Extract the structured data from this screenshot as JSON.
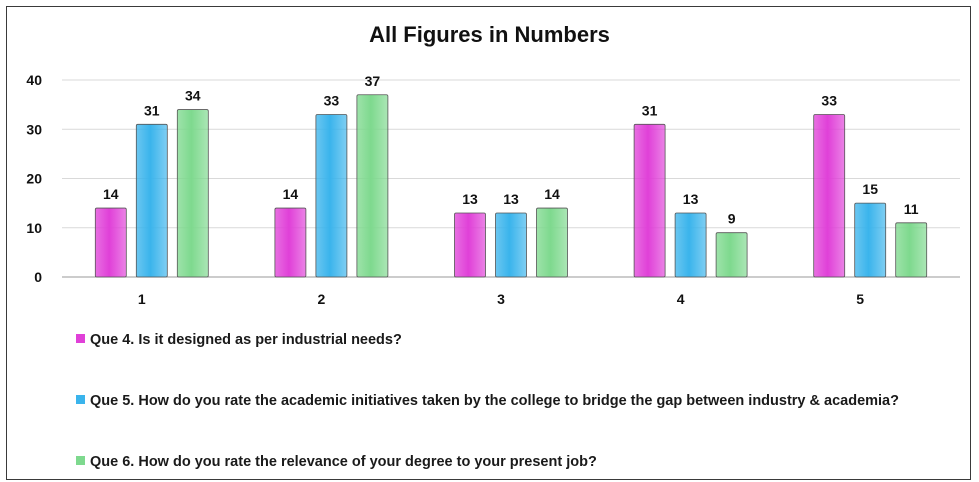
{
  "chart_data": {
    "type": "bar",
    "title": "All Figures in Numbers",
    "categories": [
      "1",
      "2",
      "3",
      "4",
      "5"
    ],
    "ylim": [
      0,
      40
    ],
    "yticks": [
      0,
      10,
      20,
      30,
      40
    ],
    "grid": true,
    "legend_position": "bottom",
    "series": [
      {
        "name": "Que 4. Is it designed as per industrial needs?",
        "color": "#e040d8",
        "values": [
          14,
          14,
          13,
          31,
          33
        ]
      },
      {
        "name": "Que 5. How do you rate the academic initiatives taken by the college to bridge the gap between industry & academia?",
        "color": "#3ab4ec",
        "values": [
          31,
          33,
          13,
          13,
          15
        ]
      },
      {
        "name": "Que 6. How do you rate the relevance of your degree to your present job?",
        "color": "#7ed98e",
        "values": [
          34,
          37,
          14,
          9,
          11
        ]
      }
    ]
  }
}
